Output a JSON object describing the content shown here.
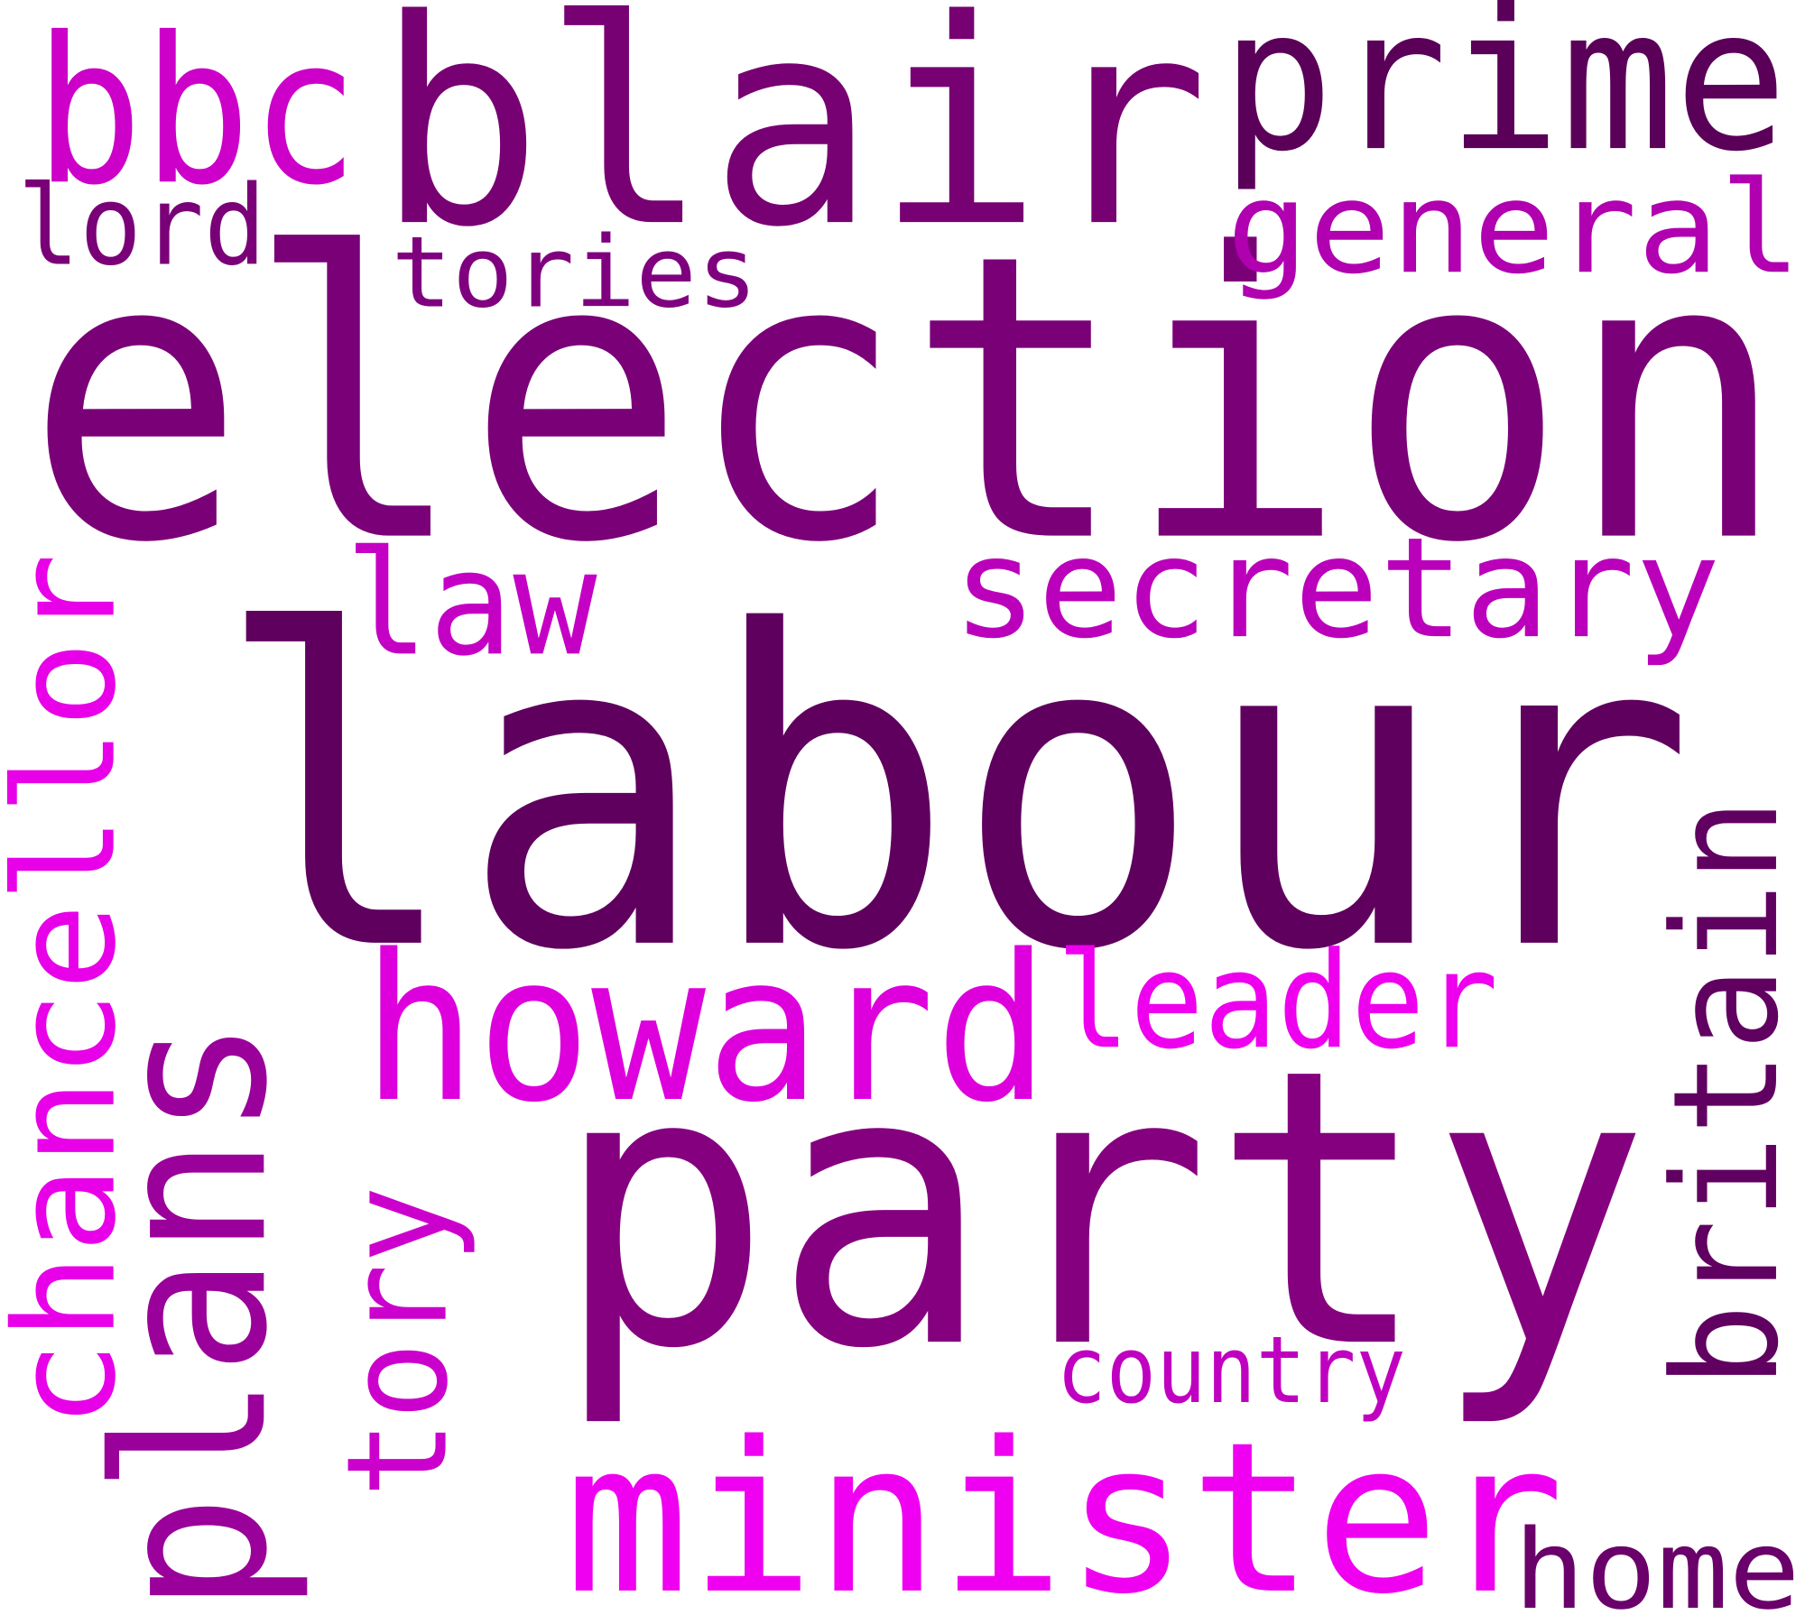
{
  "words": [
    {
      "text": "election",
      "color": "#7a0078"
    },
    {
      "text": "labour",
      "color": "#5f005e"
    },
    {
      "text": "party",
      "color": "#85007f"
    },
    {
      "text": "blair",
      "color": "#770072"
    },
    {
      "text": "prime",
      "color": "#5a0058"
    },
    {
      "text": "bbc",
      "color": "#cc00c8"
    },
    {
      "text": "lord",
      "color": "#7a0078"
    },
    {
      "text": "tories",
      "color": "#7f007f"
    },
    {
      "text": "general",
      "color": "#b000b0"
    },
    {
      "text": "secretary",
      "color": "#bb00bb"
    },
    {
      "text": "law",
      "color": "#c400c4"
    },
    {
      "text": "howard",
      "color": "#dd00dd"
    },
    {
      "text": "leader",
      "color": "#ee00ee"
    },
    {
      "text": "country",
      "color": "#c000c0"
    },
    {
      "text": "minister",
      "color": "#f000f0"
    },
    {
      "text": "home",
      "color": "#6a006a"
    },
    {
      "text": "chancellor",
      "color": "#e800e8"
    },
    {
      "text": "plans",
      "color": "#9a009a"
    },
    {
      "text": "tory",
      "color": "#cc00cc"
    },
    {
      "text": "britain",
      "color": "#600060"
    }
  ]
}
